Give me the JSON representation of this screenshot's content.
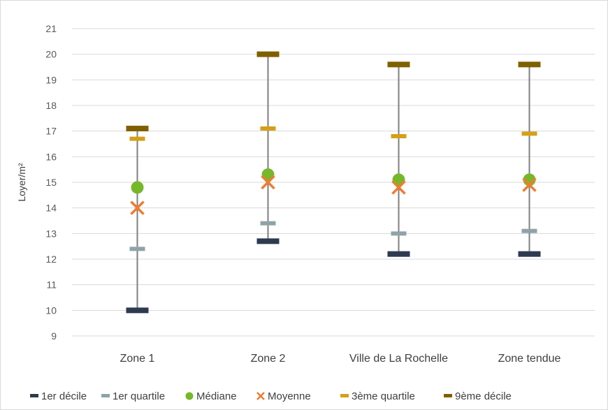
{
  "chart_data": {
    "type": "scatter",
    "title": "",
    "xlabel": "",
    "ylabel": "Loyer/m²",
    "ylim": [
      9,
      21
    ],
    "yticks": [
      9,
      10,
      11,
      12,
      13,
      14,
      15,
      16,
      17,
      18,
      19,
      20,
      21
    ],
    "grid": true,
    "legend_position": "bottom",
    "categories": [
      "Zone 1",
      "Zone 2",
      "Ville de La Rochelle",
      "Zone tendue"
    ],
    "series": [
      {
        "name": "1er décile",
        "marker": "dash-large",
        "color": "#2e3a4f",
        "values": [
          10.0,
          12.7,
          12.2,
          12.2
        ]
      },
      {
        "name": "1er quartile",
        "marker": "dash",
        "color": "#8fa3a8",
        "values": [
          12.4,
          13.4,
          13.0,
          13.1
        ]
      },
      {
        "name": "Médiane",
        "marker": "circle",
        "color": "#76b82a",
        "values": [
          14.8,
          15.3,
          15.1,
          15.1
        ]
      },
      {
        "name": "Moyenne",
        "marker": "x",
        "color": "#ed7d31",
        "values": [
          14.0,
          15.0,
          14.8,
          14.9
        ]
      },
      {
        "name": "3ème quartile",
        "marker": "dash",
        "color": "#d4a017",
        "values": [
          16.7,
          17.1,
          16.8,
          16.9
        ]
      },
      {
        "name": "9ème décile",
        "marker": "dash-large",
        "color": "#7f6000",
        "values": [
          17.1,
          20.0,
          19.6,
          19.6
        ]
      }
    ]
  }
}
